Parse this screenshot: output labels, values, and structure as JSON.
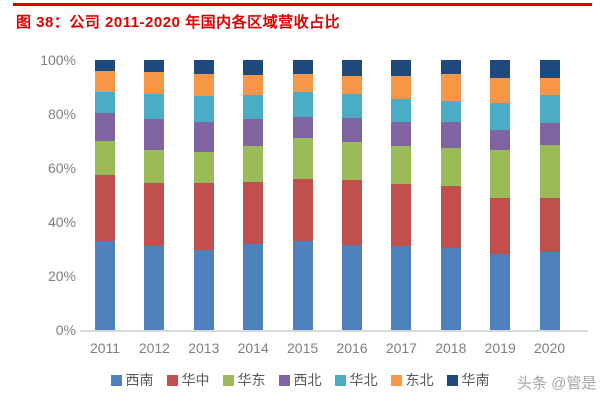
{
  "title": "图 38：公司 2011-2020 年国内各区域营收占比",
  "watermark": "头条 @管是",
  "colors": {
    "title_red": "#e00000",
    "axis_text": "#808080",
    "legend_text": "#595959",
    "axis_line": "#d9d9d9"
  },
  "chart_data": {
    "type": "bar",
    "stacked": true,
    "unit": "%",
    "title": "公司 2011-2020 年国内各区域营收占比",
    "xlabel": "",
    "ylabel": "",
    "ylim": [
      0,
      100
    ],
    "yticks": [
      0,
      20,
      40,
      60,
      80,
      100
    ],
    "ytick_suffix": "%",
    "grid": false,
    "legend_position": "bottom",
    "categories": [
      "2011",
      "2012",
      "2013",
      "2014",
      "2015",
      "2016",
      "2017",
      "2018",
      "2019",
      "2020"
    ],
    "series": [
      {
        "name": "西南",
        "color": "#4f81bd",
        "values": [
          33,
          31,
          29.5,
          32,
          33,
          31.5,
          31,
          30.5,
          28,
          29
        ]
      },
      {
        "name": "华中",
        "color": "#c0504d",
        "values": [
          24.5,
          23.5,
          25,
          23,
          23,
          24,
          23,
          23,
          21,
          20
        ]
      },
      {
        "name": "华东",
        "color": "#9bbb59",
        "values": [
          12.5,
          12,
          11.5,
          13,
          15,
          14,
          14,
          14,
          17.5,
          19.5
        ]
      },
      {
        "name": "西北",
        "color": "#8064a2",
        "values": [
          10.5,
          11.5,
          11,
          10,
          8,
          9,
          9,
          9.5,
          7.5,
          8
        ]
      },
      {
        "name": "华北",
        "color": "#4bacc6",
        "values": [
          7.5,
          9.5,
          9.5,
          9,
          9,
          9,
          8.5,
          8,
          10,
          10.5
        ]
      },
      {
        "name": "东北",
        "color": "#f79646",
        "values": [
          8,
          8,
          8.5,
          7.5,
          7,
          6.5,
          8.5,
          10,
          9.5,
          6.5
        ]
      },
      {
        "name": "华南",
        "color": "#1f497d",
        "values": [
          4,
          4.5,
          5,
          5.5,
          5,
          6,
          6,
          5,
          6.5,
          6.5
        ]
      }
    ]
  }
}
